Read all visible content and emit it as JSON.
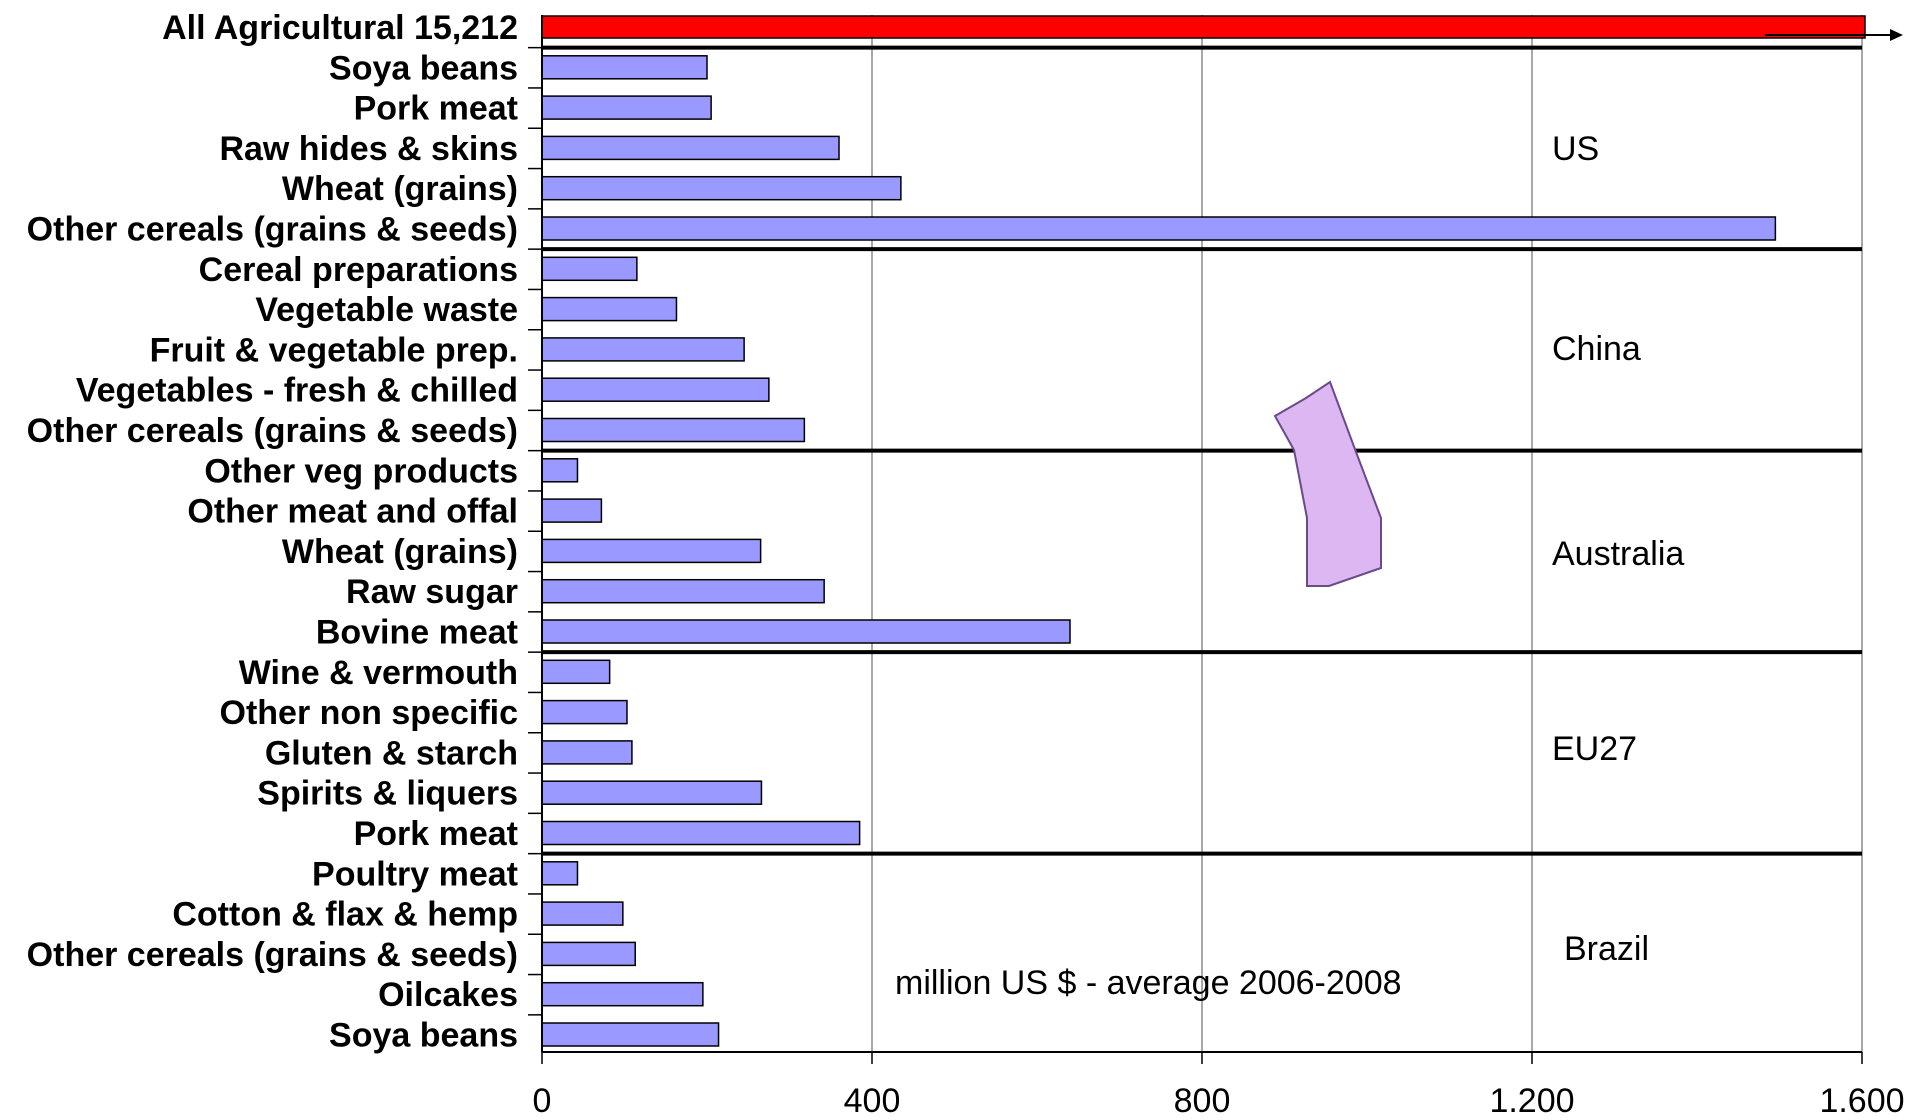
{
  "chart_data": {
    "type": "bar",
    "orientation": "horizontal",
    "total": {
      "label": "All Agricultural 15,212",
      "value": 15212,
      "color": "#ff0000"
    },
    "categories": [
      "Soya beans",
      "Pork meat",
      "Raw hides & skins",
      "Wheat (grains)",
      "Other cereals (grains & seeds)",
      "Cereal preparations",
      "Vegetable waste",
      "Fruit & vegetable prep.",
      "Vegetables - fresh & chilled",
      "Other cereals (grains & seeds)",
      "Other veg products",
      "Other meat and offal",
      "Wheat (grains)",
      "Raw sugar",
      "Bovine meat",
      "Wine & vermouth",
      "Other non specific",
      "Gluten & starch",
      "Spirits & liquers",
      "Pork meat",
      "Poultry meat",
      "Cotton & flax & hemp",
      "Other cereals (grains & seeds)",
      "Oilcakes",
      "Soya beans"
    ],
    "values": [
      200,
      205,
      360,
      435,
      1495,
      115,
      163,
      245,
      275,
      318,
      43,
      72,
      265,
      342,
      640,
      82,
      103,
      109,
      266,
      385,
      43,
      98,
      113,
      195,
      214
    ],
    "groups": [
      {
        "label": "US",
        "start": 0,
        "end": 4
      },
      {
        "label": "China",
        "start": 5,
        "end": 9
      },
      {
        "label": "Australia",
        "start": 10,
        "end": 14
      },
      {
        "label": "EU27",
        "start": 15,
        "end": 19
      },
      {
        "label": "Brazil",
        "start": 20,
        "end": 24
      }
    ],
    "xlim": [
      0,
      1600
    ],
    "xticks": [
      0,
      400,
      800,
      1200,
      1600
    ],
    "xtick_labels": [
      "0",
      "400",
      "800",
      "1.200",
      "1.600"
    ],
    "annotation": "million US $ - average 2006-2008",
    "bar_color": "#9999ff",
    "grid": "vertical",
    "xlabel": "",
    "ylabel": ""
  }
}
